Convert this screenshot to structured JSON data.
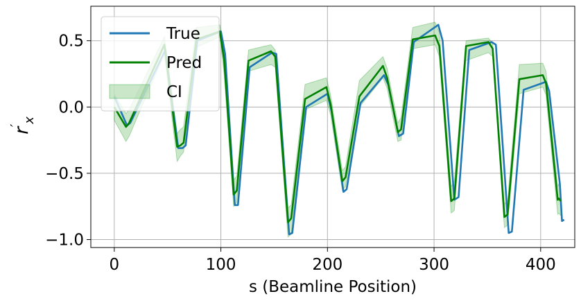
{
  "chart_data": {
    "type": "line",
    "xlabel": "s (Beamline Position)",
    "ylabel": "r'x",
    "xlim": [
      -22,
      432
    ],
    "ylim": [
      -1.06,
      0.76
    ],
    "xticks": [
      0,
      100,
      200,
      300,
      400
    ],
    "xtick_labels": [
      "0",
      "100",
      "200",
      "300",
      "400"
    ],
    "yticks": [
      -1.0,
      -0.5,
      0.0,
      0.5
    ],
    "ytick_labels": [
      "−1.0",
      "−0.5",
      "0.0",
      "0.5"
    ],
    "grid": true,
    "legend": {
      "position": "top-left",
      "entries": [
        "True",
        "Pred",
        "CI"
      ]
    },
    "series": [
      {
        "name": "True",
        "color": "#1f77b4",
        "x": [
          0,
          12,
          15,
          48,
          60,
          64,
          67,
          78,
          100,
          104,
          113,
          116,
          127,
          148,
          152,
          164,
          167,
          180,
          200,
          204,
          215,
          218,
          231,
          253,
          257,
          267,
          271,
          281,
          304,
          308,
          319,
          323,
          333,
          354,
          358,
          370,
          373,
          384,
          405,
          408,
          418,
          420,
          422
        ],
        "y": [
          0.08,
          -0.14,
          -0.12,
          0.43,
          -0.31,
          -0.31,
          -0.29,
          0.5,
          0.57,
          0.4,
          -0.74,
          -0.74,
          0.3,
          0.41,
          0.4,
          -0.96,
          -0.95,
          0.0,
          0.1,
          -0.04,
          -0.64,
          -0.62,
          0.03,
          0.24,
          0.17,
          -0.22,
          -0.2,
          0.49,
          0.62,
          0.5,
          -0.7,
          -0.68,
          0.43,
          0.49,
          0.47,
          -0.95,
          -0.94,
          0.13,
          0.19,
          0.12,
          -0.58,
          -0.86,
          -0.85
        ]
      },
      {
        "name": "Pred",
        "color": "#008000",
        "x": [
          0,
          11,
          14,
          47,
          59,
          62,
          65,
          77,
          99,
          103,
          112,
          115,
          126,
          147,
          151,
          163,
          166,
          179,
          199,
          203,
          214,
          217,
          230,
          252,
          256,
          266,
          269,
          280,
          301,
          305,
          316,
          319,
          330,
          351,
          355,
          366,
          369,
          380,
          402,
          405,
          416,
          417,
          419
        ],
        "y": [
          0.0,
          -0.15,
          -0.12,
          0.47,
          -0.3,
          -0.29,
          -0.27,
          0.51,
          0.57,
          0.36,
          -0.66,
          -0.63,
          0.35,
          0.42,
          0.38,
          -0.87,
          -0.84,
          0.06,
          0.15,
          0.02,
          -0.56,
          -0.53,
          0.08,
          0.31,
          0.22,
          -0.19,
          -0.17,
          0.51,
          0.54,
          0.46,
          -0.71,
          -0.69,
          0.46,
          0.49,
          0.44,
          -0.83,
          -0.81,
          0.21,
          0.24,
          0.18,
          -0.7,
          -0.69,
          -0.71
        ]
      }
    ],
    "ci": {
      "name": "CI",
      "color": "#2ca02c",
      "opacity": 0.25,
      "x": [
        0,
        11,
        14,
        47,
        59,
        62,
        65,
        77,
        99,
        103,
        112,
        115,
        126,
        147,
        151,
        163,
        166,
        179,
        199,
        203,
        214,
        217,
        230,
        252,
        256,
        266,
        269,
        280,
        301,
        305,
        316,
        319,
        330,
        351,
        355,
        366,
        369,
        380,
        402,
        405,
        416,
        417,
        419
      ],
      "upper": [
        0.1,
        -0.05,
        -0.02,
        0.53,
        -0.2,
        -0.17,
        -0.15,
        0.6,
        0.62,
        0.47,
        -0.55,
        -0.52,
        0.43,
        0.47,
        0.43,
        -0.76,
        -0.74,
        0.17,
        0.22,
        0.09,
        -0.48,
        -0.45,
        0.2,
        0.38,
        0.29,
        -0.12,
        -0.08,
        0.6,
        0.64,
        0.56,
        -0.6,
        -0.56,
        0.5,
        0.52,
        0.48,
        -0.73,
        -0.71,
        0.32,
        0.33,
        0.27,
        -0.6,
        -0.58,
        -0.62
      ],
      "lower": [
        -0.1,
        -0.26,
        -0.22,
        0.4,
        -0.41,
        -0.37,
        -0.34,
        0.45,
        0.53,
        0.25,
        -0.75,
        -0.72,
        0.27,
        0.32,
        0.3,
        -0.98,
        -0.96,
        -0.02,
        0.05,
        -0.06,
        -0.63,
        -0.6,
        0.0,
        0.22,
        0.14,
        -0.26,
        -0.25,
        0.44,
        0.47,
        0.38,
        -0.8,
        -0.78,
        0.35,
        0.41,
        0.38,
        -0.91,
        -0.89,
        0.1,
        0.15,
        0.09,
        -0.81,
        -0.8,
        -0.82
      ]
    }
  }
}
